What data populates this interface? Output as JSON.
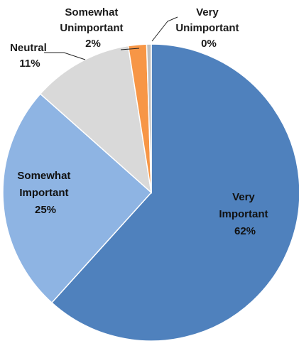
{
  "chart_data": {
    "type": "pie",
    "start": "12 o'clock",
    "direction": "clockwise",
    "slices": [
      {
        "label": "Very Important",
        "label_lines": [
          "Very",
          "Important"
        ],
        "value": 62,
        "value_label": "62%",
        "color": "#4f81bd",
        "label_position": "inside"
      },
      {
        "label": "Somewhat Important",
        "label_lines": [
          "Somewhat",
          "Important"
        ],
        "value": 25,
        "value_label": "25%",
        "color": "#8eb4e3",
        "label_position": "inside"
      },
      {
        "label": "Neutral",
        "label_lines": [
          "Neutral"
        ],
        "value": 11,
        "value_label": "11%",
        "color": "#d9d9d9",
        "label_position": "outside"
      },
      {
        "label": "Somewhat Unimportant",
        "label_lines": [
          "Somewhat",
          "Unimportant"
        ],
        "value": 2,
        "value_label": "2%",
        "color": "#f79646",
        "label_position": "outside"
      },
      {
        "label": "Very Unimportant",
        "label_lines": [
          "Very",
          "Unimportant"
        ],
        "value": 0.5,
        "value_label": "0%",
        "color": "#bfbfbf",
        "label_position": "outside"
      }
    ]
  }
}
